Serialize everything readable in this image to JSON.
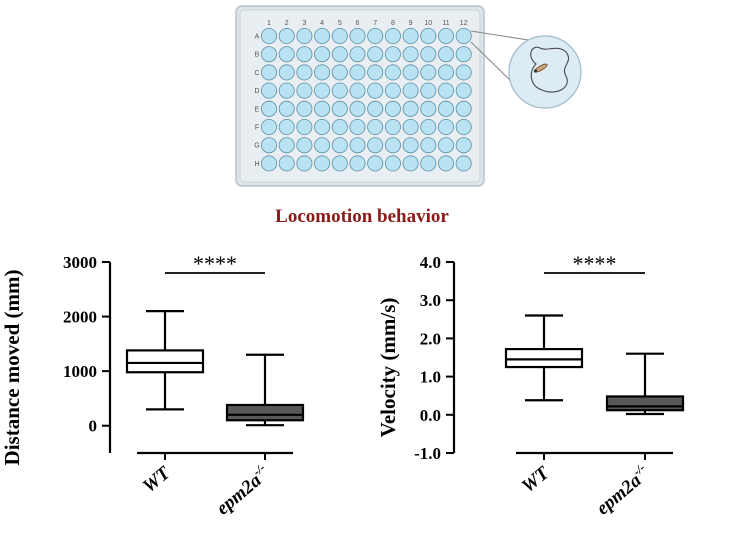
{
  "plate": {
    "columns": [
      "1",
      "2",
      "3",
      "4",
      "5",
      "6",
      "7",
      "8",
      "9",
      "10",
      "11",
      "12"
    ],
    "rows": [
      "A",
      "B",
      "C",
      "D",
      "E",
      "F",
      "G",
      "H"
    ],
    "well_color": "#b9e2f2",
    "well_stroke": "#5b8fa6",
    "plate_color": "#dfe6ea",
    "plate_border": "#b7c2c8"
  },
  "title": "Locomotion behavior",
  "title_color": "#8b1a1a",
  "chart_data": [
    {
      "type": "box",
      "ylabel": "Distance moved (mm)",
      "ylim": [
        -500,
        3000
      ],
      "yticks": [
        "0",
        "1000",
        "2000",
        "3000"
      ],
      "tick_values": [
        0,
        1000,
        2000,
        3000
      ],
      "categories": [
        "WT",
        "epm2a"
      ],
      "category_superscript": [
        "",
        "-/-"
      ],
      "boxes": [
        {
          "name": "WT",
          "min": 300,
          "q1": 980,
          "median": 1150,
          "q3": 1380,
          "max": 2100,
          "fill": "#ffffff"
        },
        {
          "name": "epm2a-/-",
          "min": 10,
          "q1": 100,
          "median": 200,
          "q3": 380,
          "max": 1300,
          "fill": "#595959"
        }
      ],
      "significance": "****",
      "grid": false
    },
    {
      "type": "box",
      "ylabel": "Velocity (mm/s)",
      "ylim": [
        -1.0,
        4.0
      ],
      "yticks": [
        "-1.0",
        "0.0",
        "1.0",
        "2.0",
        "3.0",
        "4.0"
      ],
      "tick_values": [
        -1.0,
        0.0,
        1.0,
        2.0,
        3.0,
        4.0
      ],
      "categories": [
        "WT",
        "epm2a"
      ],
      "category_superscript": [
        "",
        "-/-"
      ],
      "boxes": [
        {
          "name": "WT",
          "min": 0.38,
          "q1": 1.25,
          "median": 1.45,
          "q3": 1.72,
          "max": 2.6,
          "fill": "#ffffff"
        },
        {
          "name": "epm2a-/-",
          "min": 0.02,
          "q1": 0.12,
          "median": 0.22,
          "q3": 0.48,
          "max": 1.6,
          "fill": "#595959"
        }
      ],
      "significance": "****",
      "grid": false
    }
  ]
}
